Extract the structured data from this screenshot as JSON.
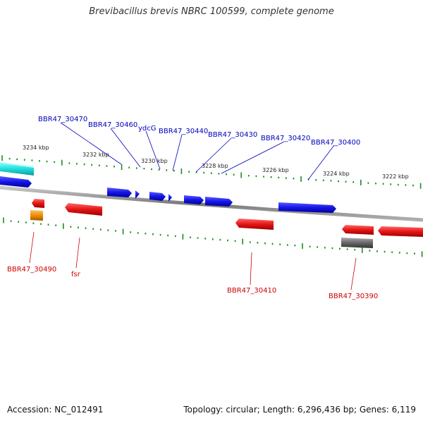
{
  "title": "Brevibacillus brevis NBRC 100599, complete genome",
  "footer": {
    "accession": "Accession: NC_012491",
    "summary": "Topology: circular; Length: 6,296,436 bp; Genes: 6,119"
  },
  "colors": {
    "forward": "#1414e6",
    "reverse": "#e61414",
    "backbone": "#8c8c8c",
    "ticks": "#1e8c1e",
    "label_forward": "#0000bb",
    "label_reverse": "#cc0000",
    "cyan": "#22e0e0",
    "orange": "#f08c00",
    "gray_gene": "#666666"
  },
  "scale_labels": [
    "3234 kbp",
    "3232 kbp",
    "3230 kbp",
    "3228 kbp",
    "3226 kbp",
    "3224 kbp",
    "3222 kbp"
  ],
  "forward_labels": [
    "BBR47_30470",
    "BBR47_30460",
    "ydcG",
    "BBR47_30440",
    "BBR47_30430",
    "BBR47_30420",
    "BBR47_30400"
  ],
  "reverse_labels": [
    "BBR47_30490",
    "fsr",
    "BBR47_30410",
    "BBR47_30390"
  ]
}
